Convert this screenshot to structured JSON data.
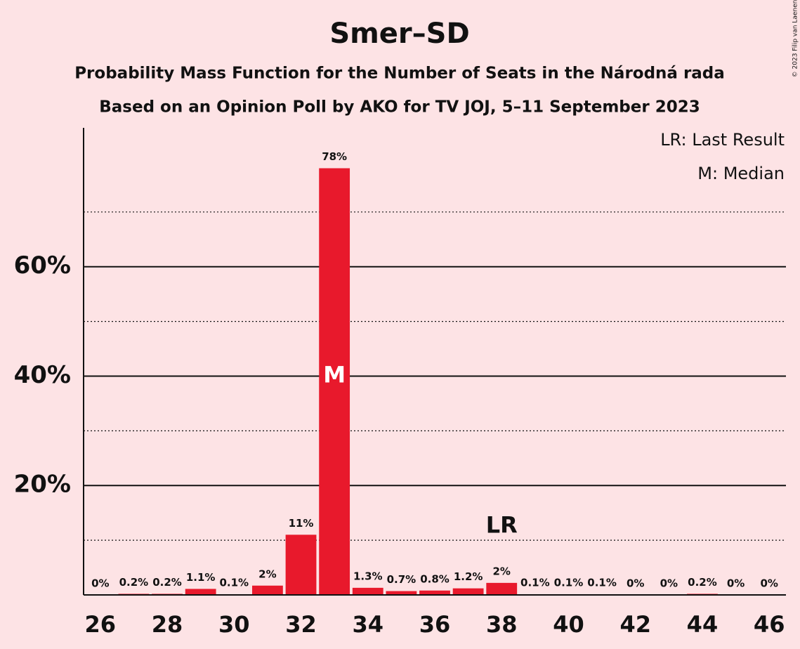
{
  "chart_data": {
    "type": "bar",
    "title": "Smer–SD",
    "subtitle": [
      "Probability Mass Function for the Number of Seats in the Národná rada",
      "Based on an Opinion Poll by AKO for TV JOJ, 5–11 September 2023"
    ],
    "x": [
      26,
      27,
      28,
      29,
      30,
      31,
      32,
      33,
      34,
      35,
      36,
      37,
      38,
      39,
      40,
      41,
      42,
      43,
      44,
      45,
      46
    ],
    "values": [
      0,
      0.2,
      0.2,
      1.1,
      0.1,
      1.7,
      11,
      78,
      1.3,
      0.7,
      0.8,
      1.2,
      2.2,
      0.1,
      0.1,
      0.1,
      0,
      0,
      0.2,
      0,
      0
    ],
    "value_labels": [
      "0%",
      "0.2%",
      "0.2%",
      "1.1%",
      "0.1%",
      "2%",
      "11%",
      "78%",
      "1.3%",
      "0.7%",
      "0.8%",
      "1.2%",
      "2%",
      "0.1%",
      "0.1%",
      "0.1%",
      "0%",
      "0%",
      "0.2%",
      "0%",
      "0%"
    ],
    "color": "#e8192c",
    "xlim": [
      25.5,
      46.5
    ],
    "xticks": [
      26,
      28,
      30,
      32,
      34,
      36,
      38,
      40,
      42,
      44,
      46
    ],
    "ylim": [
      0,
      85
    ],
    "yticks": [
      {
        "value": 20,
        "label": "20%"
      },
      {
        "value": 40,
        "label": "40%"
      },
      {
        "value": 60,
        "label": "60%"
      }
    ],
    "minor_yticks": [
      10,
      30,
      50,
      70
    ],
    "grid": true,
    "annotations": [
      {
        "text": "M",
        "x": 33,
        "y": 40
      },
      {
        "text": "LR",
        "x": 38,
        "y": 12.5
      }
    ],
    "legend": [
      "LR: Last Result",
      "M: Median"
    ],
    "copyright": "© 2023 Filip van Laenen"
  }
}
